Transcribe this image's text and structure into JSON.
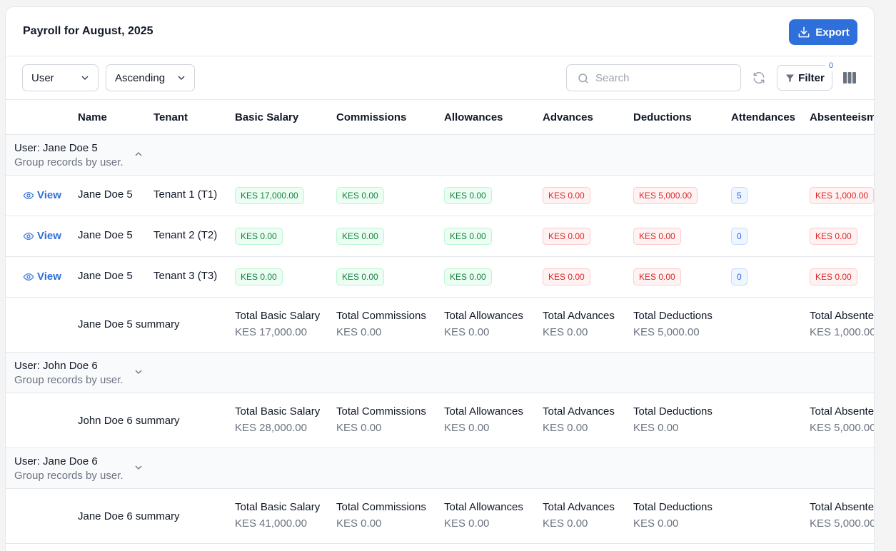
{
  "header": {
    "title": "Payroll for August, 2025",
    "export_label": "Export"
  },
  "toolbar": {
    "group_select": "User",
    "sort_select": "Ascending",
    "search_placeholder": "Search",
    "filter_label": "Filter",
    "filter_count": "0"
  },
  "columns": [
    "Name",
    "Tenant",
    "Basic Salary",
    "Commissions",
    "Allowances",
    "Advances",
    "Deductions",
    "Attendances",
    "Absenteeism"
  ],
  "groups": [
    {
      "title": "User: Jane Doe 5",
      "subtitle": "Group records by user.",
      "expanded": true,
      "rows": [
        {
          "view": "View",
          "name": "Jane Doe 5",
          "tenant": "Tenant 1 (T1)",
          "basic": "KES 17,000.00",
          "commissions": "KES 0.00",
          "allowances": "KES 0.00",
          "advances": "KES 0.00",
          "deductions": "KES 5,000.00",
          "attendances": "5",
          "absenteeism": "KES 1,000.00"
        },
        {
          "view": "View",
          "name": "Jane Doe 5",
          "tenant": "Tenant 2 (T2)",
          "basic": "KES 0.00",
          "commissions": "KES 0.00",
          "allowances": "KES 0.00",
          "advances": "KES 0.00",
          "deductions": "KES 0.00",
          "attendances": "0",
          "absenteeism": "KES 0.00"
        },
        {
          "view": "View",
          "name": "Jane Doe 5",
          "tenant": "Tenant 3 (T3)",
          "basic": "KES 0.00",
          "commissions": "KES 0.00",
          "allowances": "KES 0.00",
          "advances": "KES 0.00",
          "deductions": "KES 0.00",
          "attendances": "0",
          "absenteeism": "KES 0.00"
        }
      ],
      "summary": {
        "label": "Jane Doe 5 summary",
        "basic": "KES 17,000.00",
        "commissions": "KES 0.00",
        "allowances": "KES 0.00",
        "advances": "KES 0.00",
        "deductions": "KES 5,000.00",
        "absenteeism": "KES 1,000.00"
      }
    },
    {
      "title": "User: John Doe 6",
      "subtitle": "Group records by user.",
      "expanded": false,
      "summary": {
        "label": "John Doe 6 summary",
        "basic": "KES 28,000.00",
        "commissions": "KES 0.00",
        "allowances": "KES 0.00",
        "advances": "KES 0.00",
        "deductions": "KES 0.00",
        "absenteeism": "KES 5,000.00"
      }
    },
    {
      "title": "User: Jane Doe 6",
      "subtitle": "Group records by user.",
      "expanded": false,
      "summary": {
        "label": "Jane Doe 6 summary",
        "basic": "KES 41,000.00",
        "commissions": "KES 0.00",
        "allowances": "KES 0.00",
        "advances": "KES 0.00",
        "deductions": "KES 0.00",
        "absenteeism": "KES 5,000.00"
      }
    }
  ],
  "summary_titles": {
    "basic": "Total Basic Salary",
    "commissions": "Total Commissions",
    "allowances": "Total Allowances",
    "advances": "Total Advances",
    "deductions": "Total Deductions",
    "absenteeism": "Total Absenteeism"
  },
  "colors": {
    "accent": "#2f6fdb",
    "positive": "#15803d",
    "negative": "#dc2626",
    "info": "#2563eb"
  }
}
